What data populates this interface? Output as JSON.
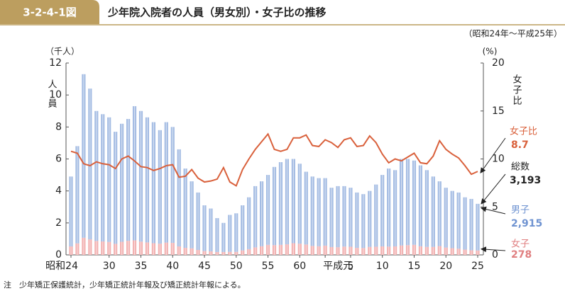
{
  "header": {
    "figure_number": "3-2-4-1図",
    "title": "少年院入院者の人員（男女別）・女子比の推移",
    "subtitle": "（昭和24年～平成25年）"
  },
  "note": "注　少年矯正保護統計，少年矯正統計年報及び矯正統計年報による。",
  "chart_data": {
    "type": "bar",
    "stacked": true,
    "y_unit": "（千人）",
    "y_label": "人員",
    "y2_unit": "(%)",
    "y2_label": "女子比",
    "categories": [
      "昭和24",
      null,
      null,
      null,
      null,
      null,
      "30",
      null,
      null,
      null,
      null,
      "35",
      null,
      null,
      null,
      null,
      "40",
      null,
      null,
      null,
      null,
      "45",
      null,
      null,
      null,
      null,
      "50",
      null,
      null,
      null,
      null,
      "55",
      null,
      null,
      null,
      null,
      "60",
      null,
      null,
      null,
      "平成元",
      null,
      null,
      null,
      "5",
      null,
      null,
      null,
      null,
      "10",
      null,
      null,
      null,
      null,
      "15",
      null,
      null,
      null,
      null,
      "20",
      null,
      null,
      null,
      null,
      "25"
    ],
    "ylim": [
      0,
      12
    ],
    "yticks": [
      0,
      2,
      4,
      6,
      8,
      10,
      12
    ],
    "y2lim": [
      0,
      20
    ],
    "y2ticks": [
      0,
      5,
      10,
      15,
      20
    ],
    "series": [
      {
        "name": "女子",
        "color": "#f2b1b1",
        "end_label": "278",
        "values": [
          0.53,
          0.72,
          1.07,
          0.97,
          0.87,
          0.84,
          0.81,
          0.69,
          0.82,
          0.88,
          0.91,
          0.83,
          0.78,
          0.73,
          0.7,
          0.77,
          0.75,
          0.53,
          0.44,
          0.41,
          0.31,
          0.24,
          0.22,
          0.18,
          0.18,
          0.19,
          0.19,
          0.28,
          0.36,
          0.47,
          0.54,
          0.63,
          0.61,
          0.63,
          0.66,
          0.73,
          0.7,
          0.65,
          0.56,
          0.54,
          0.58,
          0.49,
          0.48,
          0.52,
          0.51,
          0.44,
          0.43,
          0.5,
          0.51,
          0.53,
          0.52,
          0.53,
          0.59,
          0.61,
          0.63,
          0.54,
          0.5,
          0.5,
          0.55,
          0.46,
          0.42,
          0.39,
          0.33,
          0.29,
          0.278
        ]
      },
      {
        "name": "男子",
        "color": "#a4bce3",
        "end_label": "2,915",
        "values": [
          4.37,
          6.08,
          10.23,
          9.43,
          8.13,
          7.96,
          7.79,
          7.01,
          7.38,
          7.62,
          8.39,
          8.17,
          7.82,
          7.57,
          7.1,
          7.53,
          7.25,
          6.07,
          4.96,
          4.19,
          3.59,
          2.86,
          2.68,
          2.12,
          1.82,
          2.31,
          2.41,
          2.82,
          3.24,
          3.83,
          4.06,
          4.37,
          4.89,
          5.17,
          5.34,
          5.27,
          5.0,
          4.55,
          4.34,
          4.26,
          4.22,
          3.71,
          3.82,
          3.78,
          3.69,
          3.46,
          3.37,
          3.5,
          3.89,
          4.47,
          4.88,
          4.77,
          5.41,
          5.39,
          5.27,
          5.06,
          4.8,
          4.4,
          4.05,
          3.74,
          3.58,
          3.51,
          3.27,
          3.21,
          2.915
        ]
      },
      {
        "name": "女子比",
        "color": "#d9603b",
        "axis": "y2",
        "values": [
          10.8,
          10.6,
          9.5,
          9.3,
          9.7,
          9.5,
          9.4,
          9.0,
          10.0,
          10.3,
          9.8,
          9.2,
          9.1,
          8.8,
          9.0,
          9.3,
          9.4,
          8.1,
          8.2,
          8.9,
          8.0,
          7.6,
          7.7,
          7.9,
          9.1,
          7.6,
          7.2,
          8.9,
          10.0,
          11.0,
          11.8,
          12.6,
          11.0,
          10.8,
          11.0,
          12.2,
          12.2,
          12.5,
          11.4,
          11.3,
          12.0,
          11.7,
          11.2,
          12.0,
          12.2,
          11.3,
          11.4,
          12.4,
          11.7,
          10.5,
          9.6,
          10.0,
          9.8,
          10.2,
          10.6,
          9.6,
          9.5,
          10.3,
          11.9,
          11.0,
          10.5,
          10.1,
          9.3,
          8.4,
          8.7
        ]
      }
    ],
    "total": {
      "name": "総数",
      "value": 3.193,
      "label": "3,193"
    }
  }
}
